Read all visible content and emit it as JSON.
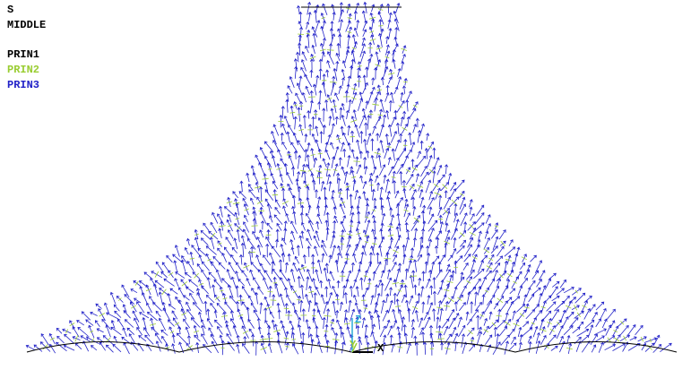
{
  "legend": {
    "quantity": "S",
    "location": "MIDDLE",
    "items": [
      {
        "label": "PRIN1",
        "color": "#000000"
      },
      {
        "label": "PRIN2",
        "color": "#9acd32"
      },
      {
        "label": "PRIN3",
        "color": "#2323c8"
      }
    ]
  },
  "triad": {
    "x": "X",
    "y": "Y",
    "z": "Z"
  }
}
